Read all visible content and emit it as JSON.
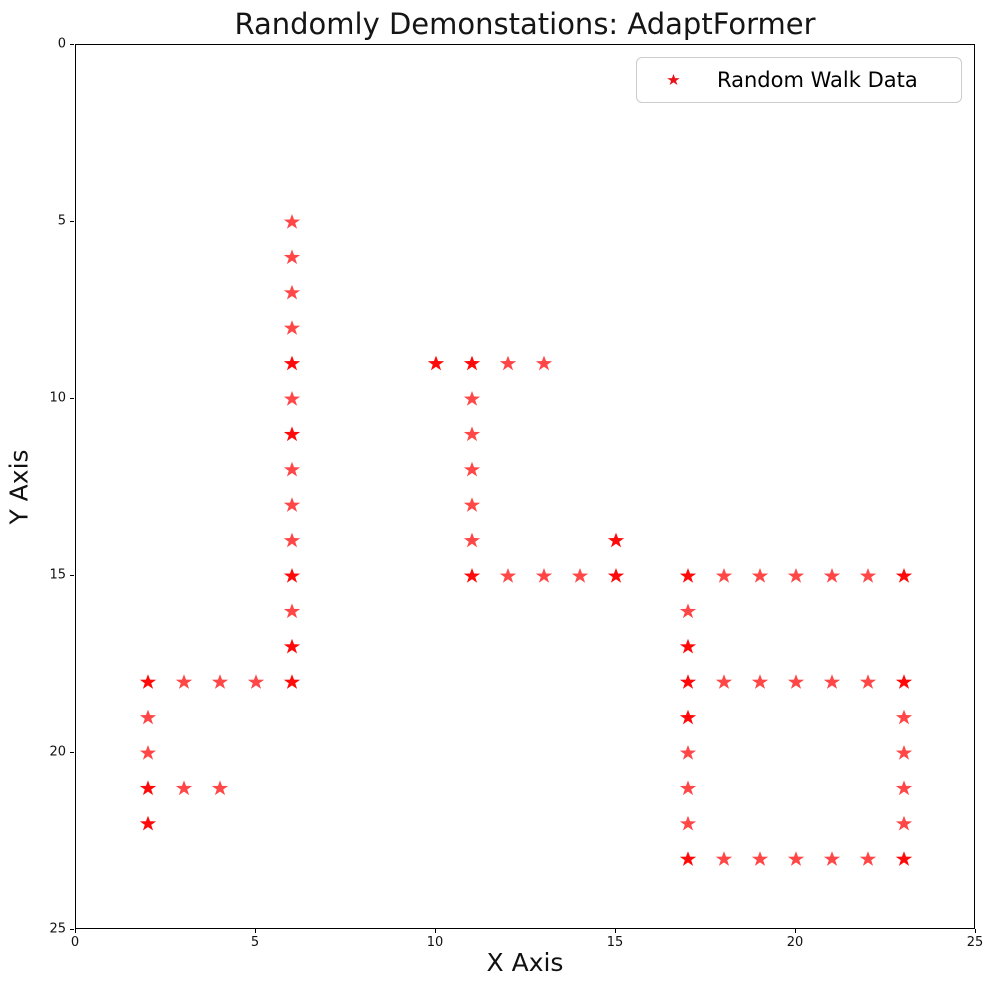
{
  "figure": {
    "title": "Randomly Demonstations: AdaptFormer"
  },
  "chart_data": {
    "type": "scatter",
    "title": "Randomly Demonstations: AdaptFormer",
    "xlabel": "X Axis",
    "ylabel": "Y Axis",
    "xlim": [
      0,
      25
    ],
    "ylim": [
      0,
      25
    ],
    "y_axis_inverted": true,
    "grid": false,
    "xticks": [
      0,
      5,
      10,
      15,
      20,
      25
    ],
    "yticks": [
      0,
      5,
      10,
      15,
      20,
      25
    ],
    "marker": "star",
    "marker_color": "#ff0000",
    "legend": {
      "label": "Random Walk Data",
      "position": "upper right",
      "marker": "star",
      "marker_color": "#ff0000"
    },
    "points": [
      {
        "x": 6,
        "y": 5,
        "overlap": false
      },
      {
        "x": 6,
        "y": 6,
        "overlap": false
      },
      {
        "x": 6,
        "y": 7,
        "overlap": false
      },
      {
        "x": 6,
        "y": 8,
        "overlap": false
      },
      {
        "x": 6,
        "y": 9,
        "overlap": true
      },
      {
        "x": 6,
        "y": 10,
        "overlap": false
      },
      {
        "x": 6,
        "y": 11,
        "overlap": true
      },
      {
        "x": 6,
        "y": 12,
        "overlap": false
      },
      {
        "x": 6,
        "y": 13,
        "overlap": false
      },
      {
        "x": 6,
        "y": 14,
        "overlap": false
      },
      {
        "x": 6,
        "y": 15,
        "overlap": true
      },
      {
        "x": 6,
        "y": 16,
        "overlap": false
      },
      {
        "x": 6,
        "y": 17,
        "overlap": true
      },
      {
        "x": 6,
        "y": 18,
        "overlap": true
      },
      {
        "x": 5,
        "y": 18,
        "overlap": false
      },
      {
        "x": 4,
        "y": 18,
        "overlap": false
      },
      {
        "x": 3,
        "y": 18,
        "overlap": false
      },
      {
        "x": 2,
        "y": 18,
        "overlap": true
      },
      {
        "x": 2,
        "y": 19,
        "overlap": false
      },
      {
        "x": 2,
        "y": 20,
        "overlap": false
      },
      {
        "x": 2,
        "y": 21,
        "overlap": true
      },
      {
        "x": 3,
        "y": 21,
        "overlap": false
      },
      {
        "x": 4,
        "y": 21,
        "overlap": false
      },
      {
        "x": 2,
        "y": 22,
        "overlap": true
      },
      {
        "x": 10,
        "y": 9,
        "overlap": true
      },
      {
        "x": 11,
        "y": 9,
        "overlap": true
      },
      {
        "x": 12,
        "y": 9,
        "overlap": false
      },
      {
        "x": 13,
        "y": 9,
        "overlap": false
      },
      {
        "x": 11,
        "y": 10,
        "overlap": false
      },
      {
        "x": 11,
        "y": 11,
        "overlap": false
      },
      {
        "x": 11,
        "y": 12,
        "overlap": false
      },
      {
        "x": 11,
        "y": 13,
        "overlap": false
      },
      {
        "x": 11,
        "y": 14,
        "overlap": false
      },
      {
        "x": 11,
        "y": 15,
        "overlap": true
      },
      {
        "x": 12,
        "y": 15,
        "overlap": false
      },
      {
        "x": 13,
        "y": 15,
        "overlap": false
      },
      {
        "x": 14,
        "y": 15,
        "overlap": false
      },
      {
        "x": 15,
        "y": 15,
        "overlap": true
      },
      {
        "x": 15,
        "y": 14,
        "overlap": true
      },
      {
        "x": 17,
        "y": 15,
        "overlap": true
      },
      {
        "x": 18,
        "y": 15,
        "overlap": false
      },
      {
        "x": 19,
        "y": 15,
        "overlap": false
      },
      {
        "x": 20,
        "y": 15,
        "overlap": false
      },
      {
        "x": 21,
        "y": 15,
        "overlap": false
      },
      {
        "x": 22,
        "y": 15,
        "overlap": false
      },
      {
        "x": 23,
        "y": 15,
        "overlap": true
      },
      {
        "x": 17,
        "y": 16,
        "overlap": false
      },
      {
        "x": 17,
        "y": 17,
        "overlap": true
      },
      {
        "x": 17,
        "y": 18,
        "overlap": true
      },
      {
        "x": 18,
        "y": 18,
        "overlap": false
      },
      {
        "x": 19,
        "y": 18,
        "overlap": false
      },
      {
        "x": 20,
        "y": 18,
        "overlap": false
      },
      {
        "x": 21,
        "y": 18,
        "overlap": false
      },
      {
        "x": 22,
        "y": 18,
        "overlap": false
      },
      {
        "x": 23,
        "y": 18,
        "overlap": true
      },
      {
        "x": 17,
        "y": 19,
        "overlap": true
      },
      {
        "x": 17,
        "y": 20,
        "overlap": false
      },
      {
        "x": 17,
        "y": 21,
        "overlap": false
      },
      {
        "x": 17,
        "y": 22,
        "overlap": false
      },
      {
        "x": 17,
        "y": 23,
        "overlap": true
      },
      {
        "x": 23,
        "y": 19,
        "overlap": false
      },
      {
        "x": 23,
        "y": 20,
        "overlap": false
      },
      {
        "x": 23,
        "y": 21,
        "overlap": false
      },
      {
        "x": 23,
        "y": 22,
        "overlap": false
      },
      {
        "x": 18,
        "y": 23,
        "overlap": false
      },
      {
        "x": 19,
        "y": 23,
        "overlap": false
      },
      {
        "x": 20,
        "y": 23,
        "overlap": false
      },
      {
        "x": 21,
        "y": 23,
        "overlap": false
      },
      {
        "x": 22,
        "y": 23,
        "overlap": false
      },
      {
        "x": 23,
        "y": 23,
        "overlap": true
      }
    ]
  }
}
